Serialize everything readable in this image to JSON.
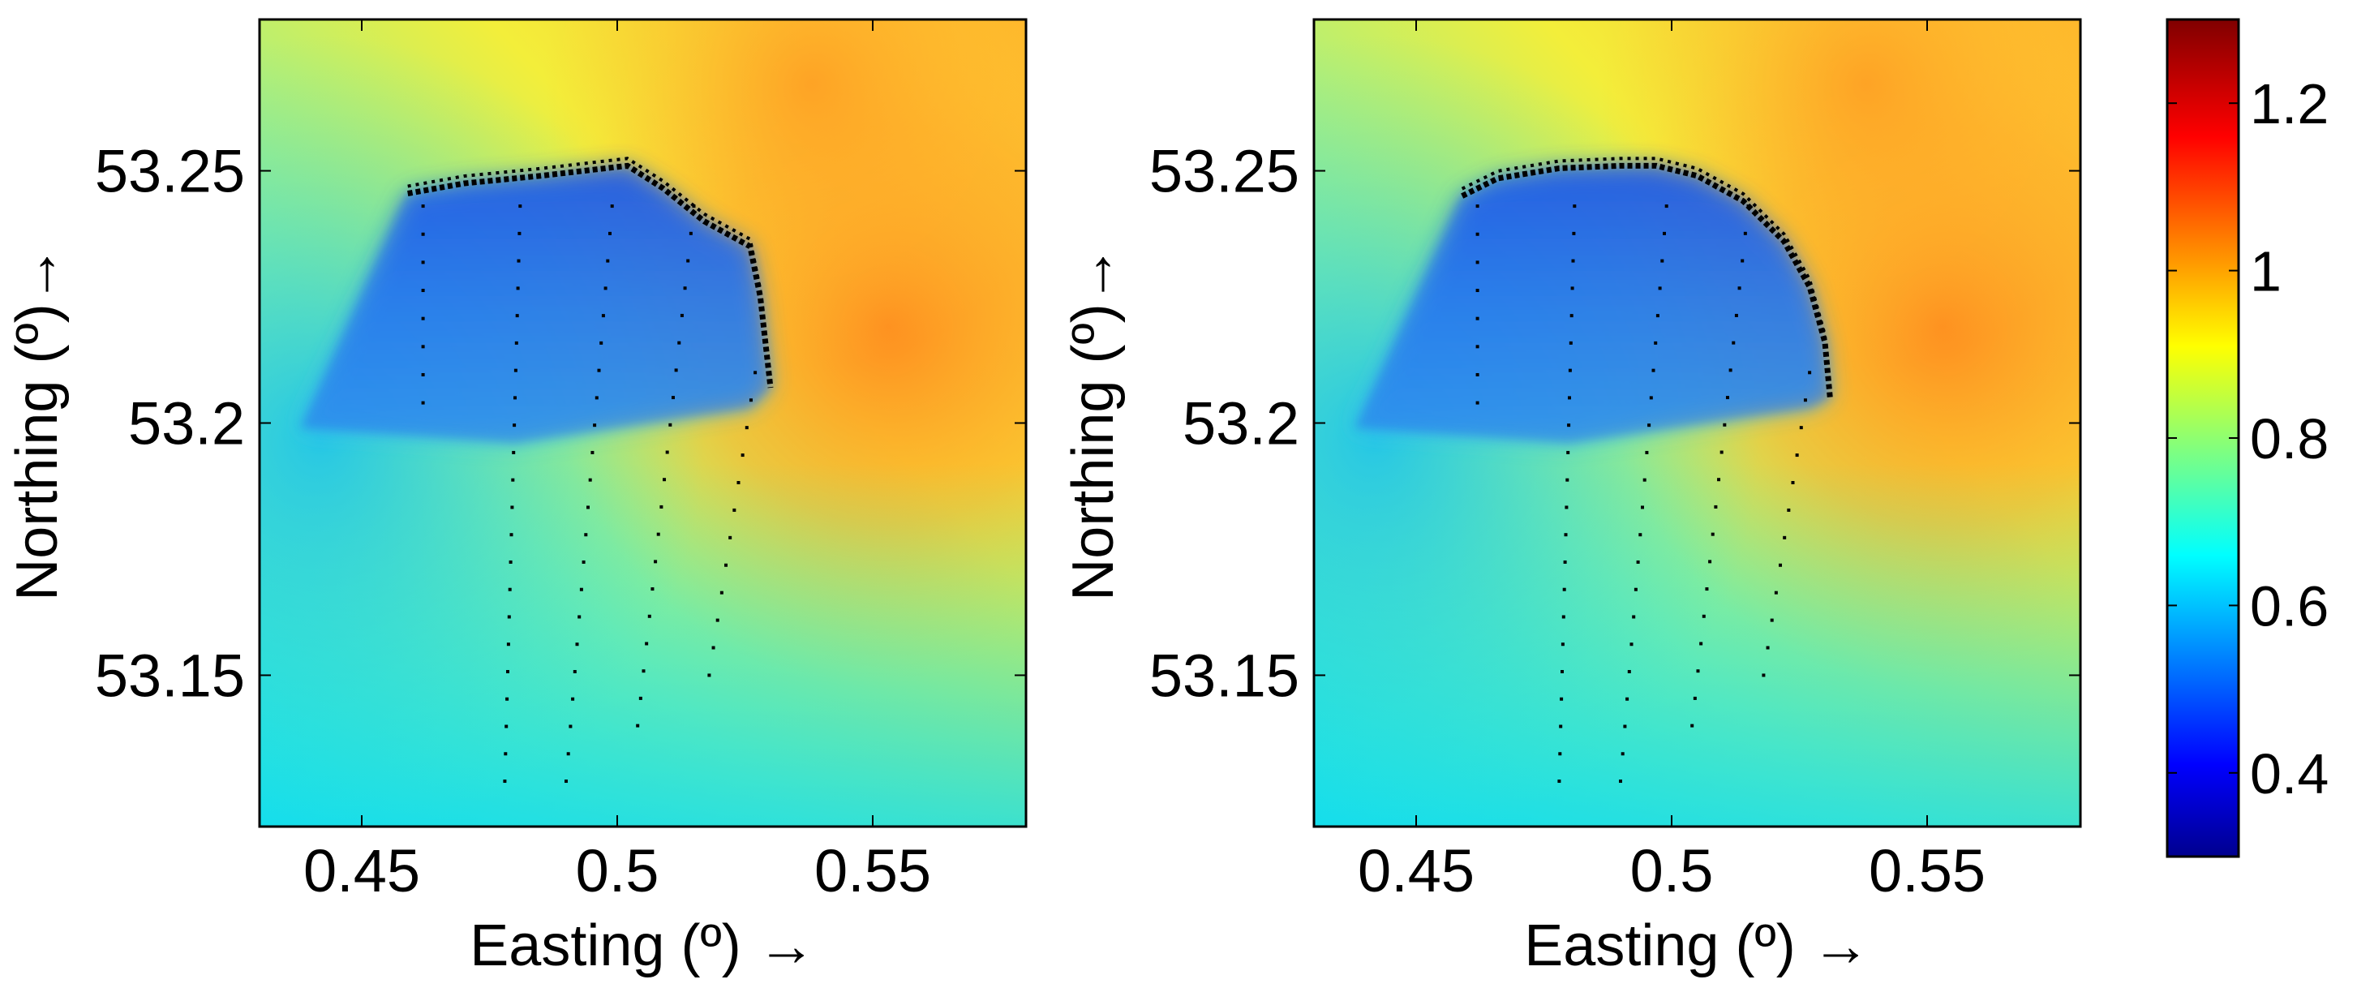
{
  "chart_data": [
    {
      "type": "heatmap",
      "xlabel": "Easting (º)  →",
      "ylabel": "Northing (º)→",
      "xlim": [
        0.43,
        0.58
      ],
      "ylim": [
        53.12,
        53.28
      ],
      "xticks": [
        0.45,
        0.5,
        0.55
      ],
      "xtick_labels": [
        "0.45",
        "0.5",
        "0.55"
      ],
      "yticks": [
        53.15,
        53.2,
        53.25
      ],
      "ytick_labels": [
        "53.15",
        "53.2",
        "53.25"
      ],
      "grid": false,
      "colormap": "jet",
      "structure": {
        "shape": "angular",
        "points": [
          [
            0.459,
            53.2455
          ],
          [
            0.47,
            53.2475
          ],
          [
            0.485,
            53.249
          ],
          [
            0.502,
            53.251
          ],
          [
            0.509,
            53.2465
          ],
          [
            0.517,
            53.24
          ],
          [
            0.526,
            53.235
          ],
          [
            0.528,
            53.225
          ],
          [
            0.53,
            53.207
          ]
        ]
      },
      "transects": [
        {
          "x0": 0.462,
          "y0": 53.243,
          "x1": 0.462,
          "y1": 53.204
        },
        {
          "x0": 0.481,
          "y0": 53.243,
          "x1": 0.478,
          "y1": 53.129
        },
        {
          "x0": 0.499,
          "y0": 53.243,
          "x1": 0.49,
          "y1": 53.129
        },
        {
          "x0": 0.515,
          "y0": 53.243,
          "x1": 0.504,
          "y1": 53.14
        },
        {
          "x0": 0.527,
          "y0": 53.21,
          "x1": 0.518,
          "y1": 53.15
        }
      ]
    },
    {
      "type": "heatmap",
      "xlabel": "Easting (º) →",
      "ylabel": "Northing (º)→",
      "xlim": [
        0.43,
        0.58
      ],
      "ylim": [
        53.12,
        53.28
      ],
      "xticks": [
        0.45,
        0.5,
        0.55
      ],
      "xtick_labels": [
        "0.45",
        "0.5",
        "0.55"
      ],
      "yticks": [
        53.15,
        53.2,
        53.25
      ],
      "ytick_labels": [
        "53.15",
        "53.2",
        "53.25"
      ],
      "grid": false,
      "colormap": "jet",
      "structure": {
        "shape": "curved",
        "points": [
          [
            0.459,
            53.245
          ],
          [
            0.466,
            53.2485
          ],
          [
            0.478,
            53.2505
          ],
          [
            0.49,
            53.251
          ],
          [
            0.497,
            53.251
          ],
          [
            0.505,
            53.249
          ],
          [
            0.514,
            53.244
          ],
          [
            0.522,
            53.236
          ],
          [
            0.527,
            53.227
          ],
          [
            0.53,
            53.216
          ],
          [
            0.531,
            53.205
          ]
        ]
      },
      "transects": [
        {
          "x0": 0.462,
          "y0": 53.243,
          "x1": 0.462,
          "y1": 53.204
        },
        {
          "x0": 0.481,
          "y0": 53.243,
          "x1": 0.478,
          "y1": 53.129
        },
        {
          "x0": 0.499,
          "y0": 53.243,
          "x1": 0.49,
          "y1": 53.129
        },
        {
          "x0": 0.515,
          "y0": 53.243,
          "x1": 0.504,
          "y1": 53.14
        },
        {
          "x0": 0.527,
          "y0": 53.21,
          "x1": 0.518,
          "y1": 53.15
        }
      ]
    }
  ],
  "colorbar": {
    "range": [
      0.3,
      1.3
    ],
    "ticks": [
      0.4,
      0.6,
      0.8,
      1,
      1.2
    ],
    "tick_labels": [
      "0.4",
      "0.6",
      "0.8",
      "1",
      "1.2"
    ],
    "colormap": "jet"
  }
}
